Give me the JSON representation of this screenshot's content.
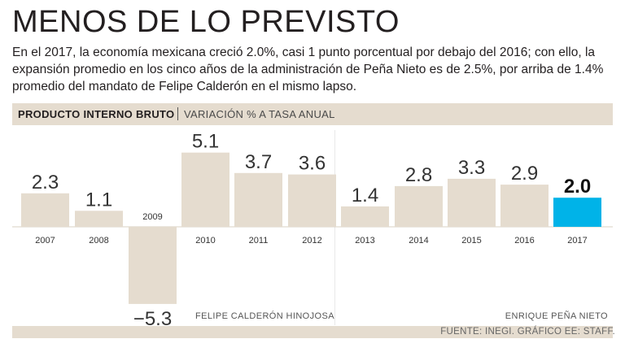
{
  "title": "MENOS DE LO PREVISTO",
  "subtitle": "En el 2017, la economía mexicana creció 2.0%, casi 1 punto porcentual por debajo del 2016; con ello, la expansión promedio en los cinco años de la administración de Peña Nieto es de 2.5%, por arriba de 1.4% promedio del mandato de Felipe Calderón en el mismo lapso.",
  "header": {
    "main": "PRODUCTO INTERNO BRUTO",
    "sub": "VARIACIÓN % A TASA ANUAL"
  },
  "source": "FUENTE: INEGI. GRÁFICO EE: STAFF.",
  "colors": {
    "bar": "#e5dccf",
    "highlight": "#00b3e8",
    "band": "#e5dccf"
  },
  "chart_data": {
    "type": "bar",
    "title": "PRODUCTO INTERNO BRUTO",
    "subtitle": "VARIACIÓN % A TASA ANUAL",
    "categories": [
      "2007",
      "2008",
      "2009",
      "2010",
      "2011",
      "2012",
      "2013",
      "2014",
      "2015",
      "2016",
      "2017"
    ],
    "values": [
      2.3,
      1.1,
      -5.3,
      5.1,
      3.7,
      3.6,
      1.4,
      2.8,
      3.3,
      2.9,
      2.0
    ],
    "value_labels": [
      "2.3",
      "1.1",
      "-5.3",
      "5.1",
      "3.7",
      "3.6",
      "1.4",
      "2.8",
      "3.3",
      "2.9",
      "2.0"
    ],
    "highlight_index": 10,
    "xlabel": "",
    "ylabel": "",
    "ylim": [
      -5.3,
      5.1
    ],
    "grid": false,
    "annotations": [
      {
        "text": "FELIPE CALDERÓN HINOJOSA",
        "period": "2007-2012"
      },
      {
        "text": "ENRIQUE PEÑA NIETO",
        "period": "2013-2017"
      }
    ]
  }
}
